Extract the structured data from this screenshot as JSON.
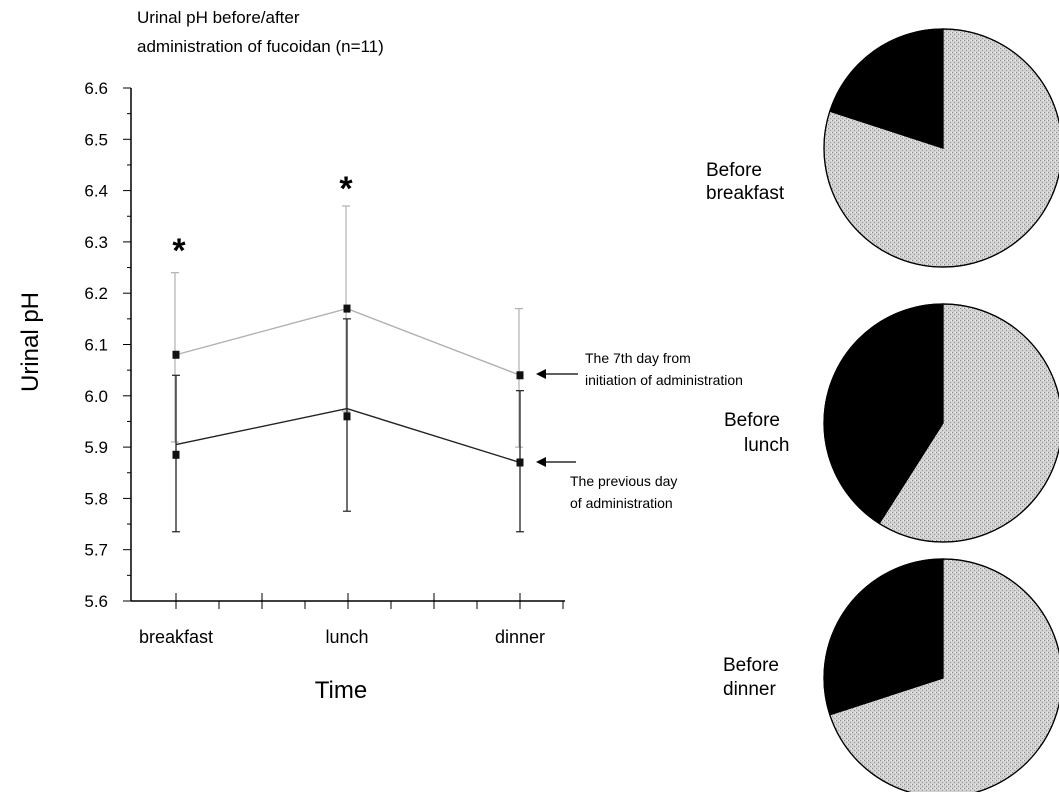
{
  "chart_data": [
    {
      "type": "line",
      "title_lines": [
        "Urinal pH before/after",
        "administration of fucoidan  (n=11)"
      ],
      "xlabel": "Time",
      "ylabel": "Urinal pH",
      "ylim": [
        5.6,
        6.6
      ],
      "y_ticks": [
        "5.6",
        "5.7",
        "5.8",
        "5.9",
        "6.0",
        "6.1",
        "6.2",
        "6.3",
        "6.4",
        "6.5",
        "6.6"
      ],
      "categories": [
        "breakfast",
        "lunch",
        "dinner"
      ],
      "grid": false,
      "series": [
        {
          "annotation_lines": [
            "The 7th day from",
            "initiation of administration"
          ],
          "color": "#b0b0b0",
          "values": [
            6.08,
            6.17,
            6.04
          ],
          "error_upper": [
            6.24,
            6.37,
            6.17
          ],
          "error_lower": [
            5.91,
            5.97,
            5.9
          ]
        },
        {
          "annotation_lines": [
            "The previous day",
            "of administration"
          ],
          "color": "#222222",
          "line_values": [
            5.905,
            5.975,
            5.87
          ],
          "values": [
            5.885,
            5.96,
            5.87
          ],
          "error_upper": [
            6.04,
            6.15,
            6.01
          ],
          "error_lower": [
            5.735,
            5.775,
            5.735
          ]
        }
      ],
      "significance_marker": "*",
      "significant_categories": [
        "breakfast",
        "lunch"
      ]
    },
    {
      "type": "pie",
      "charts": [
        {
          "label_lines": [
            "Before",
            "breakfast"
          ],
          "slices": [
            0.2,
            0.8
          ]
        },
        {
          "label_lines": [
            "Before",
            "lunch"
          ],
          "slices": [
            0.41,
            0.59
          ]
        },
        {
          "label_lines": [
            "Before",
            "dinner"
          ],
          "slices": [
            0.3,
            0.7
          ]
        }
      ],
      "slice_colors": [
        "#000000",
        "#c9c9c9"
      ]
    }
  ]
}
